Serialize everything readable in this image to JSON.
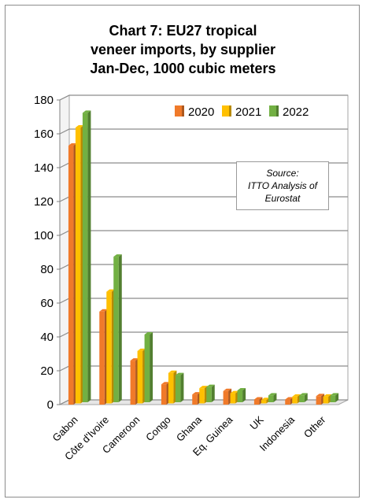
{
  "chart_data": {
    "type": "bar",
    "title_lines": [
      "Chart 7: EU27 tropical",
      "veneer imports, by supplier",
      "Jan-Dec, 1000 cubic meters"
    ],
    "categories": [
      "Gabon",
      "Côte d'Ivoire",
      "Cameroon",
      "Congo",
      "Ghana",
      "Eq. Guinea",
      "UK",
      "Indonesia",
      "Other"
    ],
    "series": [
      {
        "name": "2020",
        "color": "#f07a2a",
        "values": [
          153,
          55,
          26,
          12,
          6,
          8,
          3,
          3,
          5
        ]
      },
      {
        "name": "2021",
        "color": "#ffc000",
        "values": [
          163,
          66,
          31,
          18,
          9,
          6,
          2,
          4,
          4
        ]
      },
      {
        "name": "2022",
        "color": "#72b043",
        "values": [
          171,
          86,
          40,
          16,
          9,
          7,
          4,
          4,
          4
        ]
      }
    ],
    "ylim": [
      0,
      180
    ],
    "yticks": [
      0,
      20,
      40,
      60,
      80,
      100,
      120,
      140,
      160,
      180
    ],
    "grid": true,
    "legend": "top-right",
    "annotation_lines": [
      "Source:",
      "ITTO Analysis of",
      "Eurostat"
    ]
  }
}
